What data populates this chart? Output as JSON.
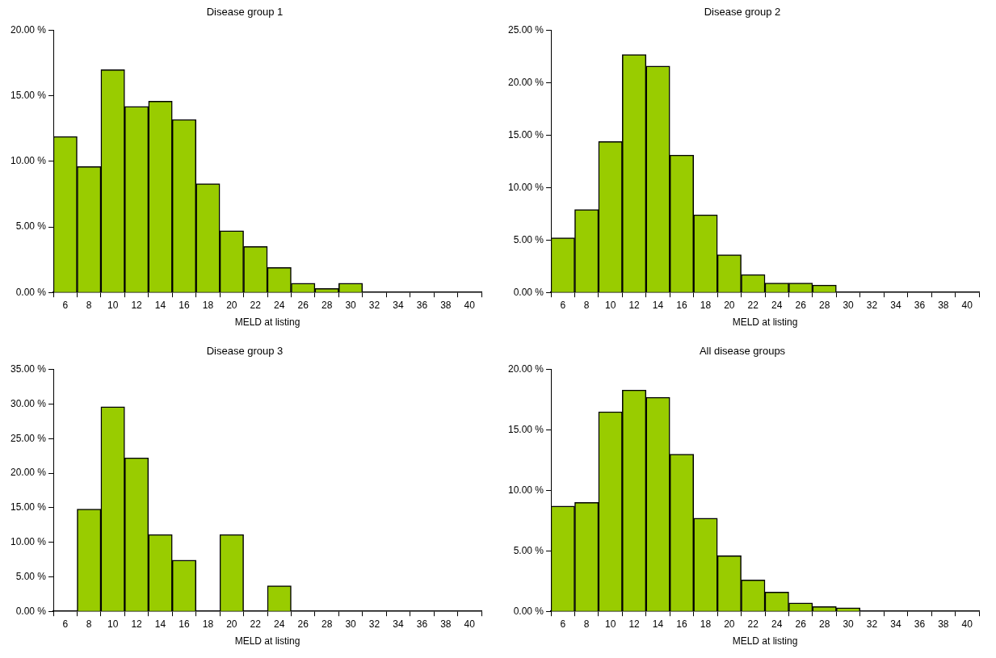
{
  "chart_data": [
    {
      "type": "bar",
      "title": "Disease group 1",
      "xlabel": "MELD at listing",
      "categories": [
        "6",
        "8",
        "10",
        "12",
        "14",
        "16",
        "18",
        "20",
        "22",
        "24",
        "26",
        "28",
        "30",
        "32",
        "34",
        "36",
        "38",
        "40"
      ],
      "values": [
        11.9,
        9.6,
        17.0,
        14.2,
        14.6,
        13.2,
        8.3,
        4.7,
        3.5,
        1.9,
        0.7,
        0.3,
        0.7,
        0,
        0,
        0,
        0,
        0
      ],
      "color": "#99cc00",
      "ylim": [
        0,
        20
      ],
      "yticks": [
        {
          "value": 0,
          "label": "0.00 %"
        },
        {
          "value": 5,
          "label": "5.00 %"
        },
        {
          "value": 10,
          "label": "10.00 %"
        },
        {
          "value": 15,
          "label": "15.00 %"
        },
        {
          "value": 20,
          "label": "20.00 %"
        }
      ],
      "grid": false,
      "legend": false
    },
    {
      "type": "bar",
      "title": "Disease group 2",
      "xlabel": "MELD at listing",
      "categories": [
        "6",
        "8",
        "10",
        "12",
        "14",
        "16",
        "18",
        "20",
        "22",
        "24",
        "26",
        "28",
        "30",
        "32",
        "34",
        "36",
        "38",
        "40"
      ],
      "values": [
        5.2,
        7.9,
        14.4,
        22.7,
        21.6,
        13.1,
        7.4,
        3.6,
        1.7,
        0.9,
        0.9,
        0.7,
        0,
        0,
        0,
        0,
        0,
        0
      ],
      "color": "#99cc00",
      "ylim": [
        0,
        25
      ],
      "yticks": [
        {
          "value": 0,
          "label": "0.00 %"
        },
        {
          "value": 5,
          "label": "5.00 %"
        },
        {
          "value": 10,
          "label": "10.00 %"
        },
        {
          "value": 15,
          "label": "15.00 %"
        },
        {
          "value": 20,
          "label": "20.00 %"
        },
        {
          "value": 25,
          "label": "25.00 %"
        }
      ],
      "grid": false,
      "legend": false
    },
    {
      "type": "bar",
      "title": "Disease group 3",
      "xlabel": "MELD at listing",
      "categories": [
        "6",
        "8",
        "10",
        "12",
        "14",
        "16",
        "18",
        "20",
        "22",
        "24",
        "26",
        "28",
        "30",
        "32",
        "34",
        "36",
        "38",
        "40"
      ],
      "values": [
        0,
        14.8,
        29.6,
        22.2,
        11.1,
        7.4,
        0,
        11.1,
        0,
        3.7,
        0,
        0,
        0,
        0,
        0,
        0,
        0,
        0
      ],
      "color": "#99cc00",
      "ylim": [
        0,
        35
      ],
      "yticks": [
        {
          "value": 0,
          "label": "0.00 %"
        },
        {
          "value": 5,
          "label": "5.00 %"
        },
        {
          "value": 10,
          "label": "10.00 %"
        },
        {
          "value": 15,
          "label": "15.00 %"
        },
        {
          "value": 20,
          "label": "20.00 %"
        },
        {
          "value": 25,
          "label": "25.00 %"
        },
        {
          "value": 30,
          "label": "30.00 %"
        },
        {
          "value": 35,
          "label": "35.00 %"
        }
      ],
      "grid": false,
      "legend": false
    },
    {
      "type": "bar",
      "title": "All disease groups",
      "xlabel": "MELD at listing",
      "categories": [
        "6",
        "8",
        "10",
        "12",
        "14",
        "16",
        "18",
        "20",
        "22",
        "24",
        "26",
        "28",
        "30",
        "32",
        "34",
        "36",
        "38",
        "40"
      ],
      "values": [
        8.7,
        9.0,
        16.5,
        18.3,
        17.7,
        13.0,
        7.7,
        4.6,
        2.6,
        1.6,
        0.7,
        0.4,
        0.3,
        0,
        0,
        0,
        0,
        0
      ],
      "color": "#99cc00",
      "ylim": [
        0,
        20
      ],
      "yticks": [
        {
          "value": 0,
          "label": "0.00 %"
        },
        {
          "value": 5,
          "label": "5.00 %"
        },
        {
          "value": 10,
          "label": "10.00 %"
        },
        {
          "value": 15,
          "label": "15.00 %"
        },
        {
          "value": 20,
          "label": "20.00 %"
        }
      ],
      "grid": false,
      "legend": false
    }
  ]
}
